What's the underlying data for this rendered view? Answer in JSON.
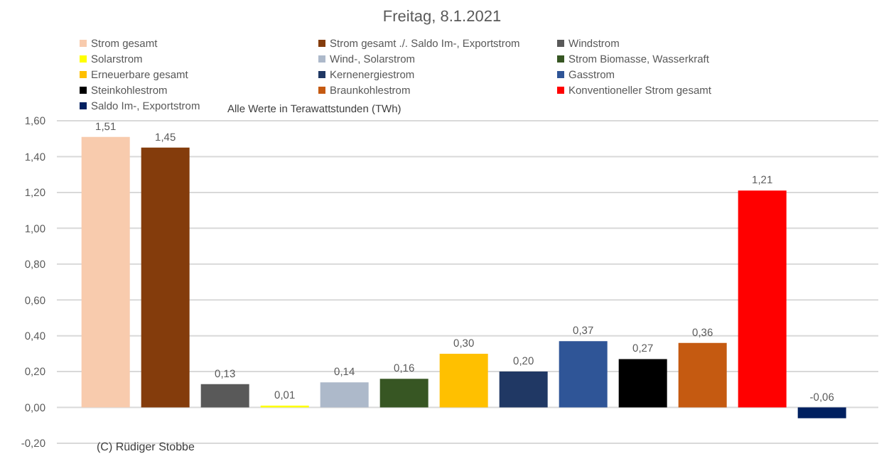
{
  "chart_data": {
    "type": "bar",
    "title": "Freitag, 8.1.2021",
    "annotations": [
      "Alle Werte in Terawattstunden (TWh)",
      "(C) Rüdiger Stobbe"
    ],
    "categories": [
      null
    ],
    "series": [
      {
        "name": "Strom gesamt",
        "color": "#f8cbad",
        "values": [
          1.51
        ],
        "value_labels": [
          "1,51"
        ]
      },
      {
        "name": "Strom gesamt ./. Saldo Im-, Exportstrom",
        "color": "#843c0c",
        "values": [
          1.45
        ],
        "value_labels": [
          "1,45"
        ]
      },
      {
        "name": "Windstrom",
        "color": "#595959",
        "values": [
          0.13
        ],
        "value_labels": [
          "0,13"
        ]
      },
      {
        "name": "Solarstrom",
        "color": "#ffff00",
        "values": [
          0.01
        ],
        "value_labels": [
          "0,01"
        ]
      },
      {
        "name": "Wind-, Solarstrom",
        "color": "#adb9ca",
        "values": [
          0.14
        ],
        "value_labels": [
          "0,14"
        ]
      },
      {
        "name": "Strom Biomasse, Wasserkraft",
        "color": "#375623",
        "values": [
          0.16
        ],
        "value_labels": [
          "0,16"
        ]
      },
      {
        "name": "Erneuerbare gesamt",
        "color": "#ffc000",
        "values": [
          0.3
        ],
        "value_labels": [
          "0,30"
        ]
      },
      {
        "name": "Kernenergiestrom",
        "color": "#203864",
        "values": [
          0.2
        ],
        "value_labels": [
          "0,20"
        ]
      },
      {
        "name": "Gasstrom",
        "color": "#2f5597",
        "values": [
          0.37
        ],
        "value_labels": [
          "0,37"
        ]
      },
      {
        "name": "Steinkohlestrom",
        "color": "#000000",
        "values": [
          0.27
        ],
        "value_labels": [
          "0,27"
        ]
      },
      {
        "name": "Braunkohlestrom",
        "color": "#c55a11",
        "values": [
          0.36
        ],
        "value_labels": [
          "0,36"
        ]
      },
      {
        "name": "Konventioneller Strom gesamt",
        "color": "#ff0000",
        "values": [
          1.21
        ],
        "value_labels": [
          "1,21"
        ]
      },
      {
        "name": "Saldo Im-, Exportstrom",
        "color": "#002060",
        "values": [
          -0.06
        ],
        "value_labels": [
          "-0,06"
        ]
      }
    ],
    "ylim": [
      -0.2,
      1.6
    ],
    "yticks": [
      {
        "value": -0.2,
        "label": "-0,20"
      },
      {
        "value": 0,
        "label": "0,00"
      },
      {
        "value": 0.2,
        "label": "0,20"
      },
      {
        "value": 0.4,
        "label": "0,40"
      },
      {
        "value": 0.6,
        "label": "0,60"
      },
      {
        "value": 0.8,
        "label": "0,80"
      },
      {
        "value": 1,
        "label": "1,00"
      },
      {
        "value": 1.2,
        "label": "1,20"
      },
      {
        "value": 1.4,
        "label": "1,40"
      },
      {
        "value": 1.6,
        "label": "1,60"
      }
    ],
    "grid": "y",
    "legend": "top"
  }
}
